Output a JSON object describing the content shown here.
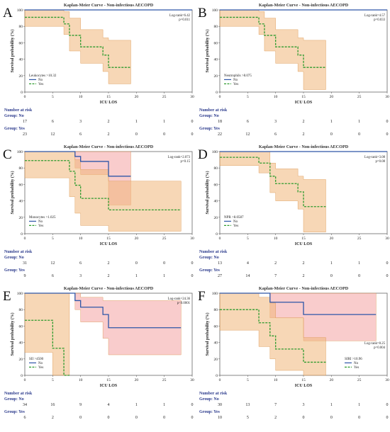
{
  "figure": {
    "panels": [
      {
        "letter": "A",
        "title": "Kaplan-Meier Curve - Non-infectious AECOPD",
        "xlabel": "ICU LOS",
        "ylabel": "Survival probability (%)",
        "stats": [
          "Log-rank=6.42",
          "p=0.011"
        ],
        "legend": {
          "title": "Leukocytes >10.32",
          "items": [
            "No",
            "Yes"
          ]
        },
        "legend_pos": "bottom-left",
        "risk": {
          "title": "Number at risk",
          "groups": [
            {
              "label": "Group: No",
              "values": [
                "17",
                "6",
                "3",
                "2",
                "1",
                "1",
                "0"
              ]
            },
            {
              "label": "Group: Yes",
              "values": [
                "23",
                "12",
                "6",
                "2",
                "0",
                "0",
                "0"
              ]
            }
          ]
        }
      },
      {
        "letter": "B",
        "title": "Kaplan-Meier Curve - Non-infectious AECOPD",
        "xlabel": "ICU LOS",
        "ylabel": "Survival probability (%)",
        "stats": [
          "Log-rank=4.57",
          "p=0.033"
        ],
        "legend": {
          "title": "Neutrophils >8.075",
          "items": [
            "No",
            "Yes"
          ]
        },
        "legend_pos": "bottom-left",
        "risk": {
          "title": "Number at risk",
          "groups": [
            {
              "label": "Group: No",
              "values": [
                "18",
                "6",
                "3",
                "2",
                "1",
                "1",
                "0"
              ]
            },
            {
              "label": "Group: Yes",
              "values": [
                "22",
                "12",
                "6",
                "2",
                "0",
                "0",
                "0"
              ]
            }
          ]
        }
      },
      {
        "letter": "C",
        "title": "Kaplan-Meier Curve - Non-infectious AECOPD",
        "xlabel": "ICU LOS",
        "ylabel": "Survival probability (%)",
        "stats": [
          "Log-rank=2.073",
          "p=0.15"
        ],
        "legend": {
          "title": "Monocytes >1.025",
          "items": [
            "No",
            "Yes"
          ]
        },
        "legend_pos": "bottom-left",
        "risk": {
          "title": "Number at risk",
          "groups": [
            {
              "label": "Group: No",
              "values": [
                "31",
                "12",
                "6",
                "2",
                "0",
                "0",
                "0"
              ]
            },
            {
              "label": "Group: Yes",
              "values": [
                "9",
                "6",
                "3",
                "2",
                "1",
                "1",
                "0"
              ]
            }
          ]
        }
      },
      {
        "letter": "D",
        "title": "Kaplan-Meier Curve - Non-infectious AECOPD",
        "xlabel": "ICU LOS",
        "ylabel": "Survival probability (%)",
        "stats": [
          "Log-rank=3.08",
          "p=0.08"
        ],
        "legend": {
          "title": "NPR >8.0587",
          "items": [
            "No",
            "Yes"
          ]
        },
        "legend_pos": "bottom-left",
        "risk": {
          "title": "Number at risk",
          "groups": [
            {
              "label": "Group: No",
              "values": [
                "13",
                "4",
                "2",
                "2",
                "1",
                "1",
                "0"
              ]
            },
            {
              "label": "Group: Yes",
              "values": [
                "27",
                "14",
                "7",
                "2",
                "0",
                "0",
                "0"
              ]
            }
          ]
        }
      },
      {
        "letter": "E",
        "title": "Kaplan-Meier Curve - Non-infectious AECOPD",
        "xlabel": "ICU LOS",
        "ylabel": "Survival probability (%)",
        "stats": [
          "Log-rank=24.36",
          "p<0.0001"
        ],
        "legend": {
          "title": "SII >4500",
          "items": [
            "No",
            "Yes"
          ]
        },
        "legend_pos": "bottom-left",
        "risk": {
          "title": "Number at risk",
          "groups": [
            {
              "label": "Group: No",
              "values": [
                "34",
                "16",
                "9",
                "4",
                "1",
                "1",
                "0"
              ]
            },
            {
              "label": "Group: Yes",
              "values": [
                "6",
                "2",
                "0",
                "0",
                "0",
                "0",
                "0"
              ]
            }
          ]
        }
      },
      {
        "letter": "F",
        "title": "Kaplan-Meier Curve - Non-infectious AECOPD",
        "xlabel": "ICU LOS",
        "ylabel": "Survival probability (%)",
        "stats": [
          "Log-rank=8.25",
          "p=0.004"
        ],
        "legend": {
          "title": "SIRI >10.96",
          "items": [
            "No",
            "Yes"
          ]
        },
        "legend_pos": "bottom-right",
        "risk": {
          "title": "Number at risk",
          "groups": [
            {
              "label": "Group: No",
              "values": [
                "30",
                "13",
                "7",
                "3",
                "1",
                "1",
                "0"
              ]
            },
            {
              "label": "Group: Yes",
              "values": [
                "10",
                "5",
                "2",
                "0",
                "0",
                "0",
                "0"
              ]
            }
          ]
        }
      }
    ]
  },
  "chart_data": [
    {
      "type": "line",
      "panel": "A",
      "title": "Kaplan-Meier Curve - Non-infectious AECOPD",
      "xlabel": "ICU LOS",
      "ylabel": "Survival probability (%)",
      "xlim": [
        0,
        30
      ],
      "ylim": [
        0,
        100
      ],
      "xticks": [
        0,
        5,
        10,
        15,
        20,
        25,
        30
      ],
      "yticks": [
        0,
        20,
        40,
        60,
        80,
        100
      ],
      "series": [
        {
          "name": "No",
          "color": "#2e56a8",
          "dash": false,
          "steps": [
            [
              0,
              100
            ],
            [
              30,
              100
            ]
          ]
        },
        {
          "name": "Yes",
          "color": "#2e9b2e",
          "dash": true,
          "steps": [
            [
              0,
              91
            ],
            [
              7,
              83
            ],
            [
              8,
              69
            ],
            [
              10,
              55
            ],
            [
              14,
              45
            ],
            [
              15,
              30
            ],
            [
              19,
              30
            ]
          ],
          "ci": [
            [
              0,
              100,
              80
            ],
            [
              7,
              98,
              70
            ],
            [
              8,
              90,
              50
            ],
            [
              10,
              76,
              35
            ],
            [
              14,
              66,
              25
            ],
            [
              15,
              63,
              10
            ],
            [
              19,
              63,
              10
            ]
          ],
          "ci_color": "#f0b77a"
        }
      ]
    },
    {
      "type": "line",
      "panel": "B",
      "title": "Kaplan-Meier Curve - Non-infectious AECOPD",
      "xlabel": "ICU LOS",
      "ylabel": "Survival probability (%)",
      "xlim": [
        0,
        30
      ],
      "ylim": [
        0,
        100
      ],
      "xticks": [
        0,
        5,
        10,
        15,
        20,
        25,
        30
      ],
      "yticks": [
        0,
        20,
        40,
        60,
        80,
        100
      ],
      "series": [
        {
          "name": "No",
          "color": "#2e56a8",
          "dash": false,
          "steps": [
            [
              0,
              100
            ],
            [
              30,
              100
            ]
          ]
        },
        {
          "name": "Yes",
          "color": "#2e9b2e",
          "dash": true,
          "steps": [
            [
              0,
              91
            ],
            [
              7,
              83
            ],
            [
              8,
              69
            ],
            [
              10,
              55
            ],
            [
              14,
              45
            ],
            [
              15,
              30
            ],
            [
              19,
              30
            ]
          ],
          "ci": [
            [
              0,
              100,
              80
            ],
            [
              7,
              98,
              70
            ],
            [
              8,
              90,
              50
            ],
            [
              10,
              76,
              35
            ],
            [
              14,
              66,
              25
            ],
            [
              15,
              63,
              3
            ],
            [
              19,
              63,
              3
            ]
          ],
          "ci_color": "#f0b77a"
        }
      ]
    },
    {
      "type": "line",
      "panel": "C",
      "title": "Kaplan-Meier Curve - Non-infectious AECOPD",
      "xlabel": "ICU LOS",
      "ylabel": "Survival probability (%)",
      "xlim": [
        0,
        30
      ],
      "ylim": [
        0,
        100
      ],
      "xticks": [
        0,
        5,
        10,
        15,
        20,
        25,
        30
      ],
      "yticks": [
        0,
        20,
        40,
        60,
        80,
        100
      ],
      "series": [
        {
          "name": "No",
          "color": "#2e56a8",
          "dash": false,
          "steps": [
            [
              0,
              100
            ],
            [
              9,
              94
            ],
            [
              10,
              88
            ],
            [
              15,
              70
            ],
            [
              19,
              70
            ]
          ],
          "ci": [
            [
              0,
              100,
              100
            ],
            [
              9,
              100,
              80
            ],
            [
              10,
              100,
              72
            ],
            [
              15,
              100,
              35
            ],
            [
              19,
              100,
              35
            ]
          ],
          "ci_color": "#f4a3a3"
        },
        {
          "name": "Yes",
          "color": "#2e9b2e",
          "dash": true,
          "steps": [
            [
              0,
              89
            ],
            [
              8,
              76
            ],
            [
              9,
              59
            ],
            [
              10,
              43
            ],
            [
              15,
              29
            ],
            [
              28,
              29
            ]
          ],
          "ci": [
            [
              0,
              100,
              68
            ],
            [
              8,
              100,
              45
            ],
            [
              9,
              90,
              25
            ],
            [
              10,
              78,
              10
            ],
            [
              15,
              64,
              3
            ],
            [
              28,
              64,
              3
            ]
          ],
          "ci_color": "#f0b77a"
        }
      ]
    },
    {
      "type": "line",
      "panel": "D",
      "title": "Kaplan-Meier Curve - Non-infectious AECOPD",
      "xlabel": "ICU LOS",
      "ylabel": "Survival probability (%)",
      "xlim": [
        0,
        30
      ],
      "ylim": [
        0,
        100
      ],
      "xticks": [
        0,
        5,
        10,
        15,
        20,
        25,
        30
      ],
      "yticks": [
        0,
        20,
        40,
        60,
        80,
        100
      ],
      "series": [
        {
          "name": "No",
          "color": "#2e56a8",
          "dash": false,
          "steps": [
            [
              0,
              100
            ],
            [
              30,
              100
            ]
          ]
        },
        {
          "name": "Yes",
          "color": "#2e9b2e",
          "dash": true,
          "steps": [
            [
              0,
              93
            ],
            [
              7,
              86
            ],
            [
              9,
              70
            ],
            [
              10,
              61
            ],
            [
              14,
              51
            ],
            [
              15,
              33
            ],
            [
              19,
              33
            ]
          ],
          "ci": [
            [
              0,
              100,
              83
            ],
            [
              7,
              100,
              74
            ],
            [
              9,
              86,
              50
            ],
            [
              10,
              79,
              40
            ],
            [
              14,
              70,
              30
            ],
            [
              15,
              66,
              2
            ],
            [
              19,
              66,
              2
            ]
          ],
          "ci_color": "#f0b77a"
        }
      ]
    },
    {
      "type": "line",
      "panel": "E",
      "title": "Kaplan-Meier Curve - Non-infectious AECOPD",
      "xlabel": "ICU LOS",
      "ylabel": "Survival probability (%)",
      "xlim": [
        0,
        30
      ],
      "ylim": [
        0,
        100
      ],
      "xticks": [
        0,
        5,
        10,
        15,
        20,
        25,
        30
      ],
      "yticks": [
        0,
        20,
        40,
        60,
        80,
        100
      ],
      "series": [
        {
          "name": "No",
          "color": "#2e56a8",
          "dash": false,
          "steps": [
            [
              0,
              100
            ],
            [
              9,
              91
            ],
            [
              10,
              83
            ],
            [
              14,
              74
            ],
            [
              15,
              58
            ],
            [
              28,
              58
            ]
          ],
          "ci": [
            [
              0,
              100,
              100
            ],
            [
              9,
              100,
              80
            ],
            [
              10,
              95,
              65
            ],
            [
              14,
              91,
              45
            ],
            [
              15,
              91,
              25
            ],
            [
              28,
              91,
              25
            ]
          ],
          "ci_color": "#f4a3a3"
        },
        {
          "name": "Yes",
          "color": "#2e9b2e",
          "dash": true,
          "steps": [
            [
              0,
              67
            ],
            [
              5,
              33
            ],
            [
              7,
              0
            ],
            [
              8,
              0
            ]
          ],
          "ci": [
            [
              0,
              100,
              28
            ],
            [
              5,
              100,
              0
            ],
            [
              7,
              100,
              0
            ],
            [
              8,
              100,
              0
            ]
          ],
          "ci_color": "#f0b77a"
        }
      ]
    },
    {
      "type": "line",
      "panel": "F",
      "title": "Kaplan-Meier Curve - Non-infectious AECOPD",
      "xlabel": "ICU LOS",
      "ylabel": "Survival probability (%)",
      "xlim": [
        0,
        30
      ],
      "ylim": [
        0,
        100
      ],
      "xticks": [
        0,
        5,
        10,
        15,
        20,
        25,
        30
      ],
      "yticks": [
        0,
        20,
        40,
        60,
        80,
        100
      ],
      "series": [
        {
          "name": "No",
          "color": "#2e56a8",
          "dash": false,
          "steps": [
            [
              0,
              100
            ],
            [
              9,
              89
            ],
            [
              15,
              74
            ],
            [
              28,
              74
            ]
          ],
          "ci": [
            [
              0,
              100,
              100
            ],
            [
              9,
              100,
              70
            ],
            [
              15,
              100,
              42
            ],
            [
              28,
              100,
              42
            ]
          ],
          "ci_color": "#f4a3a3"
        },
        {
          "name": "Yes",
          "color": "#2e9b2e",
          "dash": true,
          "steps": [
            [
              0,
              80
            ],
            [
              7,
              64
            ],
            [
              9,
              48
            ],
            [
              10,
              32
            ],
            [
              15,
              16
            ],
            [
              19,
              16
            ]
          ],
          "ci": [
            [
              0,
              100,
              55
            ],
            [
              7,
              95,
              35
            ],
            [
              9,
              88,
              20
            ],
            [
              10,
              70,
              6
            ],
            [
              15,
              46,
              0
            ],
            [
              19,
              46,
              0
            ]
          ],
          "ci_color": "#f0b77a"
        }
      ]
    }
  ]
}
